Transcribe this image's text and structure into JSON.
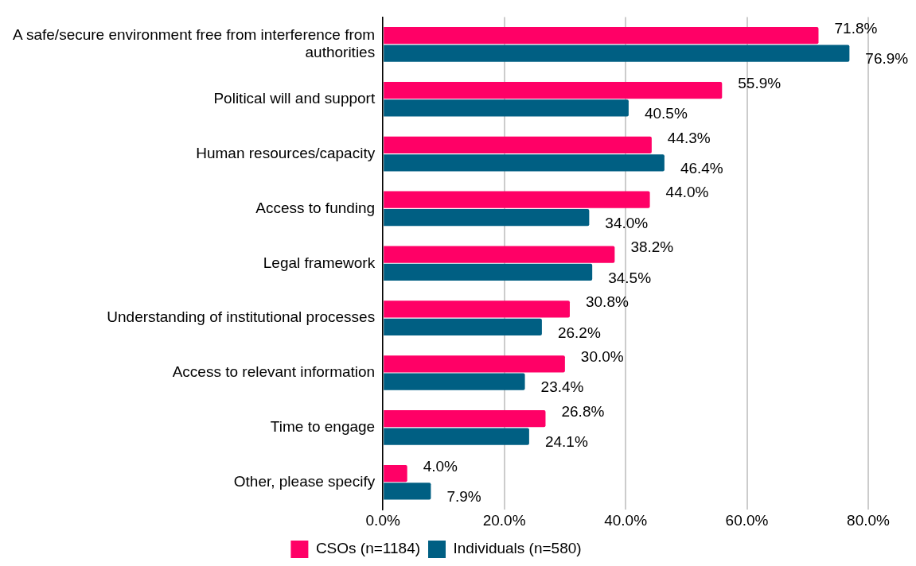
{
  "chart_data": {
    "type": "bar",
    "orientation": "horizontal",
    "categories": [
      "A safe/secure environment free from interference from authorities",
      "Political will and support",
      "Human resources/capacity",
      "Access to funding",
      "Legal framework",
      "Understanding of institutional processes",
      "Access to relevant information",
      "Time to engage",
      "Other, please specify"
    ],
    "series": [
      {
        "name": "CSOs (n=1184)",
        "color": "#ff0066",
        "values": [
          71.8,
          55.9,
          44.3,
          44.0,
          38.2,
          30.8,
          30.0,
          26.8,
          4.0
        ],
        "value_labels": [
          "71.8%",
          "55.9%",
          "44.3%",
          "44.0%",
          "38.2%",
          "30.8%",
          "30.0%",
          "26.8%",
          "4.0%"
        ]
      },
      {
        "name": "Individuals (n=580)",
        "color": "#005f83",
        "values": [
          76.9,
          40.5,
          46.4,
          34.0,
          34.5,
          26.2,
          23.4,
          24.1,
          7.9
        ],
        "value_labels": [
          "76.9%",
          "40.5%",
          "46.4%",
          "34.0%",
          "34.5%",
          "26.2%",
          "23.4%",
          "24.1%",
          "7.9%"
        ]
      }
    ],
    "xlim": [
      0,
      80
    ],
    "xticks": [
      {
        "value": 0,
        "label": "0.0%"
      },
      {
        "value": 20,
        "label": "20.0%"
      },
      {
        "value": 40,
        "label": "40.0%"
      },
      {
        "value": 60,
        "label": "60.0%"
      },
      {
        "value": 80,
        "label": "80.0%"
      }
    ],
    "grid": "x",
    "legend": "bottom"
  }
}
